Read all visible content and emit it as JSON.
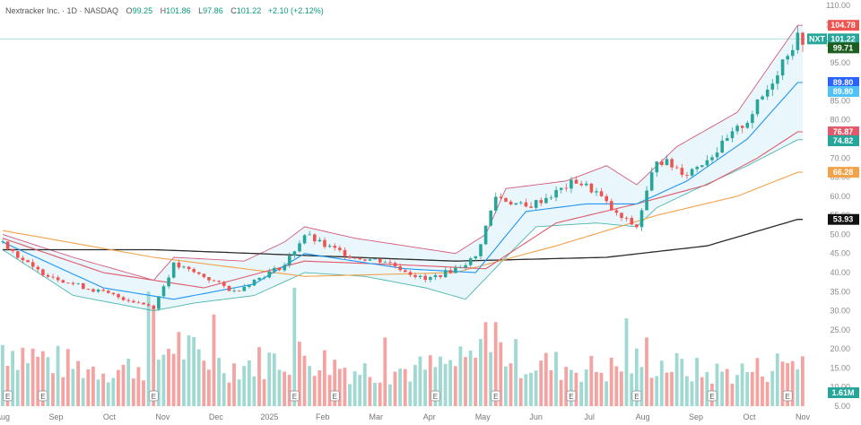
{
  "header": {
    "symbol_line": "Nextracker Inc. · 1D · NASDAQ",
    "o_label": "O",
    "o_value": "99.25",
    "h_label": "H",
    "h_value": "101.86",
    "l_label": "L",
    "l_value": "97.86",
    "c_label": "C",
    "c_value": "101.22",
    "change": "+2.10 (+2.12%)"
  },
  "colors": {
    "up": "#26a69a",
    "down": "#ef5350",
    "vol_up": "#9fd9d2",
    "vol_down": "#f5a3a1",
    "ma_short": "#2196f3",
    "ma_mid": "#e05a6b",
    "ma_long": "#f2a24b",
    "ma_200": "#2b2b2b",
    "bb": "#d45a79",
    "bb_lower": "#4db6ac",
    "bb_fill": "#d7eef8"
  },
  "chart_data": {
    "type": "candlestick",
    "ylim": [
      5,
      110
    ],
    "y_ticks": [
      5,
      10,
      15,
      20,
      25,
      30,
      35,
      40,
      45,
      50,
      55,
      60,
      65,
      70,
      75,
      80,
      85,
      90,
      95,
      100,
      105,
      110
    ],
    "y_tick_labels": [
      "5.00",
      "10.00",
      "15.00",
      "20.00",
      "25.00",
      "30.00",
      "35.00",
      "40.00",
      "45.00",
      "50.00",
      "55.00",
      "60.00",
      "65.00",
      "70.00",
      "75.00",
      "80.00",
      "85.00",
      "90.00",
      "95.00",
      "100.00",
      "105.00",
      "110.00"
    ],
    "x_months": [
      "Aug",
      "Sep",
      "Oct",
      "Nov",
      "Dec",
      "2025",
      "Feb",
      "Mar",
      "Apr",
      "May",
      "Jun",
      "Jul",
      "Aug",
      "Sep",
      "Oct",
      "Nov"
    ],
    "price_path": [
      [
        0,
        48
      ],
      [
        6,
        41
      ],
      [
        14,
        37
      ],
      [
        22,
        34
      ],
      [
        30,
        31
      ],
      [
        34,
        42
      ],
      [
        40,
        39
      ],
      [
        46,
        35
      ],
      [
        50,
        38
      ],
      [
        56,
        42
      ],
      [
        60,
        50
      ],
      [
        64,
        47
      ],
      [
        70,
        44
      ],
      [
        76,
        43
      ],
      [
        84,
        38
      ],
      [
        90,
        41
      ],
      [
        94,
        44
      ],
      [
        98,
        60
      ],
      [
        104,
        57
      ],
      [
        110,
        61
      ],
      [
        114,
        64
      ],
      [
        118,
        61
      ],
      [
        122,
        55
      ],
      [
        126,
        52
      ],
      [
        130,
        70
      ],
      [
        136,
        66
      ],
      [
        142,
        72
      ],
      [
        148,
        80
      ],
      [
        152,
        88
      ],
      [
        156,
        98
      ],
      [
        158,
        101.22
      ]
    ],
    "ma_short": [
      [
        0,
        48
      ],
      [
        20,
        36
      ],
      [
        34,
        33
      ],
      [
        50,
        37
      ],
      [
        60,
        45
      ],
      [
        80,
        41
      ],
      [
        94,
        40
      ],
      [
        104,
        56
      ],
      [
        116,
        58
      ],
      [
        126,
        58
      ],
      [
        136,
        64
      ],
      [
        148,
        75
      ],
      [
        158,
        89.8
      ]
    ],
    "ma_mid": [
      [
        0,
        49
      ],
      [
        20,
        40
      ],
      [
        40,
        36
      ],
      [
        60,
        43
      ],
      [
        80,
        42
      ],
      [
        96,
        41
      ],
      [
        110,
        53
      ],
      [
        126,
        58
      ],
      [
        140,
        63
      ],
      [
        150,
        70
      ],
      [
        158,
        76.87
      ]
    ],
    "ma_long": [
      [
        0,
        51
      ],
      [
        30,
        44
      ],
      [
        60,
        39
      ],
      [
        90,
        40
      ],
      [
        110,
        47
      ],
      [
        130,
        55
      ],
      [
        146,
        60
      ],
      [
        158,
        66.28
      ]
    ],
    "ma_200": [
      [
        0,
        46
      ],
      [
        30,
        46
      ],
      [
        60,
        44.5
      ],
      [
        90,
        43
      ],
      [
        120,
        44
      ],
      [
        140,
        47
      ],
      [
        158,
        53.93
      ]
    ],
    "bb_upper": [
      [
        0,
        50
      ],
      [
        14,
        44
      ],
      [
        30,
        38
      ],
      [
        34,
        44
      ],
      [
        48,
        43
      ],
      [
        56,
        48
      ],
      [
        60,
        52
      ],
      [
        70,
        49
      ],
      [
        80,
        47
      ],
      [
        90,
        45
      ],
      [
        96,
        50
      ],
      [
        100,
        62
      ],
      [
        112,
        64
      ],
      [
        120,
        68
      ],
      [
        126,
        63
      ],
      [
        134,
        73
      ],
      [
        146,
        82
      ],
      [
        158,
        104.78
      ]
    ],
    "bb_lower": [
      [
        0,
        46
      ],
      [
        14,
        34
      ],
      [
        30,
        30
      ],
      [
        38,
        32
      ],
      [
        50,
        34
      ],
      [
        60,
        40
      ],
      [
        72,
        39
      ],
      [
        84,
        36
      ],
      [
        92,
        33
      ],
      [
        100,
        44
      ],
      [
        106,
        52
      ],
      [
        118,
        53
      ],
      [
        126,
        52
      ],
      [
        130,
        57
      ],
      [
        138,
        62
      ],
      [
        148,
        68
      ],
      [
        158,
        74.82
      ]
    ],
    "volume_path": [
      [
        0,
        17
      ],
      [
        6,
        14
      ],
      [
        14,
        11
      ],
      [
        22,
        10
      ],
      [
        30,
        12
      ],
      [
        34,
        18
      ],
      [
        40,
        12
      ],
      [
        46,
        11
      ],
      [
        50,
        12
      ],
      [
        60,
        14
      ],
      [
        70,
        10
      ],
      [
        82,
        10
      ],
      [
        92,
        12
      ],
      [
        98,
        16
      ],
      [
        104,
        12
      ],
      [
        112,
        11
      ],
      [
        120,
        10
      ],
      [
        126,
        12
      ],
      [
        130,
        12
      ],
      [
        140,
        9
      ],
      [
        150,
        10
      ],
      [
        158,
        13
      ]
    ],
    "volume_spikes": [
      [
        29,
        30
      ],
      [
        30,
        26
      ],
      [
        42,
        24
      ],
      [
        58,
        31
      ],
      [
        76,
        18
      ],
      [
        96,
        22
      ],
      [
        98,
        22
      ],
      [
        124,
        23
      ],
      [
        128,
        18
      ]
    ],
    "last_price": 101.22,
    "last_volume": "1.61M",
    "price_tags": [
      {
        "value": 104.78,
        "label": "104.78",
        "color": "#ef5350"
      },
      {
        "value": 101.22,
        "label": "101.22",
        "color": "#26a69a",
        "symbol": "NXT"
      },
      {
        "value": 99.71,
        "label": "99.71",
        "color": "#1b5e20"
      },
      {
        "value": 89.8,
        "label": "89.80",
        "color": "#2962ff"
      },
      {
        "value": 89.8,
        "label": "89.80",
        "color": "#4fc3f7"
      },
      {
        "value": 76.87,
        "label": "76.87",
        "color": "#e05a6b"
      },
      {
        "value": 74.82,
        "label": "74.82",
        "color": "#26a69a"
      },
      {
        "value": 66.28,
        "label": "66.28",
        "color": "#f2a24b"
      },
      {
        "value": 53.93,
        "label": "53.93",
        "color": "#111111"
      }
    ],
    "earnings_markers": [
      "E",
      "E",
      "E",
      "E",
      "E",
      "E",
      "E",
      "E",
      "E",
      "E",
      "E"
    ]
  }
}
